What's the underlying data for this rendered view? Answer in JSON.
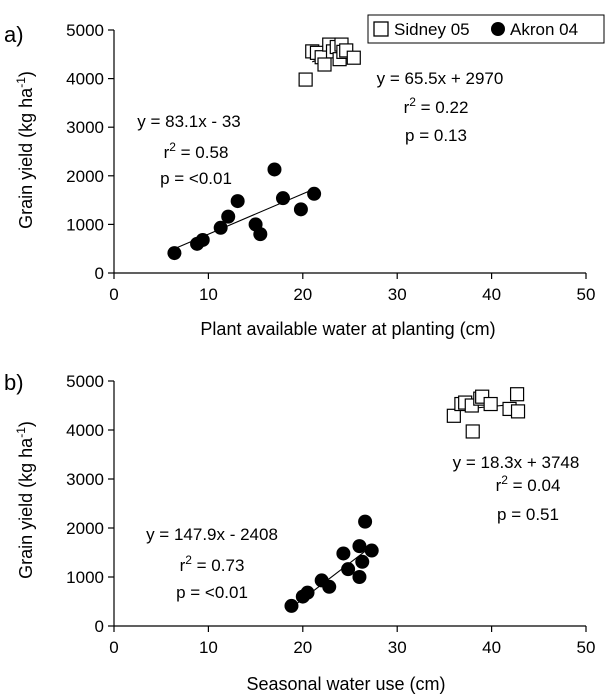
{
  "legend": {
    "items": [
      {
        "label": "Sidney 05",
        "marker": "open-square"
      },
      {
        "label": "Akron 04",
        "marker": "filled-circle"
      }
    ]
  },
  "chart_data": [
    {
      "type": "scatter",
      "panel_label": "a)",
      "xlabel": "Plant available water at planting (cm)",
      "ylabel": "Grain yield (kg ha-1)",
      "xlim": [
        0,
        50
      ],
      "ylim": [
        0,
        5000
      ],
      "xticks": [
        0,
        10,
        20,
        30,
        40,
        50
      ],
      "yticks": [
        0,
        1000,
        2000,
        3000,
        4000,
        5000
      ],
      "grid": false,
      "legend_position": "top-right",
      "series": [
        {
          "name": "Sidney 05",
          "marker": "open-square",
          "points": [
            [
              20.3,
              3980
            ],
            [
              21.0,
              4560
            ],
            [
              21.5,
              4530
            ],
            [
              22.0,
              4440
            ],
            [
              22.3,
              4290
            ],
            [
              22.8,
              4700
            ],
            [
              23.2,
              4560
            ],
            [
              23.6,
              4650
            ],
            [
              23.9,
              4400
            ],
            [
              24.1,
              4700
            ],
            [
              24.3,
              4550
            ],
            [
              24.6,
              4580
            ],
            [
              25.4,
              4430
            ]
          ],
          "fit": {
            "equation": "y = 65.5x + 2970",
            "r2": "r2 = 0.22",
            "p": "p = 0.13",
            "slope": 65.5,
            "intercept": 2970,
            "x_range": [
              21,
              25
            ]
          }
        },
        {
          "name": "Akron 04",
          "marker": "filled-circle",
          "points": [
            [
              6.4,
              410
            ],
            [
              8.8,
              600
            ],
            [
              9.4,
              680
            ],
            [
              11.3,
              930
            ],
            [
              12.1,
              1160
            ],
            [
              13.1,
              1480
            ],
            [
              15.0,
              1000
            ],
            [
              15.5,
              800
            ],
            [
              17.0,
              2130
            ],
            [
              17.9,
              1540
            ],
            [
              19.8,
              1310
            ],
            [
              21.2,
              1630
            ]
          ],
          "fit": {
            "equation": "y = 83.1x - 33",
            "r2": "r2 = 0.58",
            "p": "p = <0.01",
            "slope": 83.1,
            "intercept": -33,
            "x_range": [
              6.4,
              21.2
            ]
          }
        }
      ]
    },
    {
      "type": "scatter",
      "panel_label": "b)",
      "xlabel": "Seasonal water use (cm)",
      "ylabel": "Grain yield (kg ha-1)",
      "xlim": [
        0,
        50
      ],
      "ylim": [
        0,
        5000
      ],
      "xticks": [
        0,
        10,
        20,
        30,
        40,
        50
      ],
      "yticks": [
        0,
        1000,
        2000,
        3000,
        4000,
        5000
      ],
      "grid": false,
      "series": [
        {
          "name": "Sidney 05",
          "marker": "open-square",
          "points": [
            [
              36.0,
              4290
            ],
            [
              36.8,
              4530
            ],
            [
              37.2,
              4560
            ],
            [
              37.9,
              4500
            ],
            [
              38.0,
              3970
            ],
            [
              38.8,
              4640
            ],
            [
              39.0,
              4680
            ],
            [
              39.9,
              4530
            ],
            [
              41.9,
              4430
            ],
            [
              42.7,
              4730
            ],
            [
              42.8,
              4380
            ]
          ],
          "fit": {
            "equation": "y = 18.3x + 3748",
            "r2": "r2 = 0.04",
            "p": "p = 0.51",
            "slope": 18.3,
            "intercept": 3748,
            "x_range": [
              36.5,
              42.5
            ]
          }
        },
        {
          "name": "Akron 04",
          "marker": "filled-circle",
          "points": [
            [
              18.8,
              410
            ],
            [
              20.0,
              600
            ],
            [
              20.5,
              680
            ],
            [
              22.0,
              930
            ],
            [
              22.8,
              800
            ],
            [
              24.3,
              1480
            ],
            [
              24.8,
              1160
            ],
            [
              26.0,
              1000
            ],
            [
              26.0,
              1630
            ],
            [
              26.3,
              1310
            ],
            [
              26.6,
              2130
            ],
            [
              27.3,
              1540
            ]
          ],
          "fit": {
            "equation": "y = 147.9x - 2408",
            "r2": "r2 = 0.73",
            "p": "p = <0.01",
            "slope": 147.9,
            "intercept": -2408,
            "x_range": [
              18.8,
              27.3
            ]
          }
        }
      ]
    }
  ]
}
